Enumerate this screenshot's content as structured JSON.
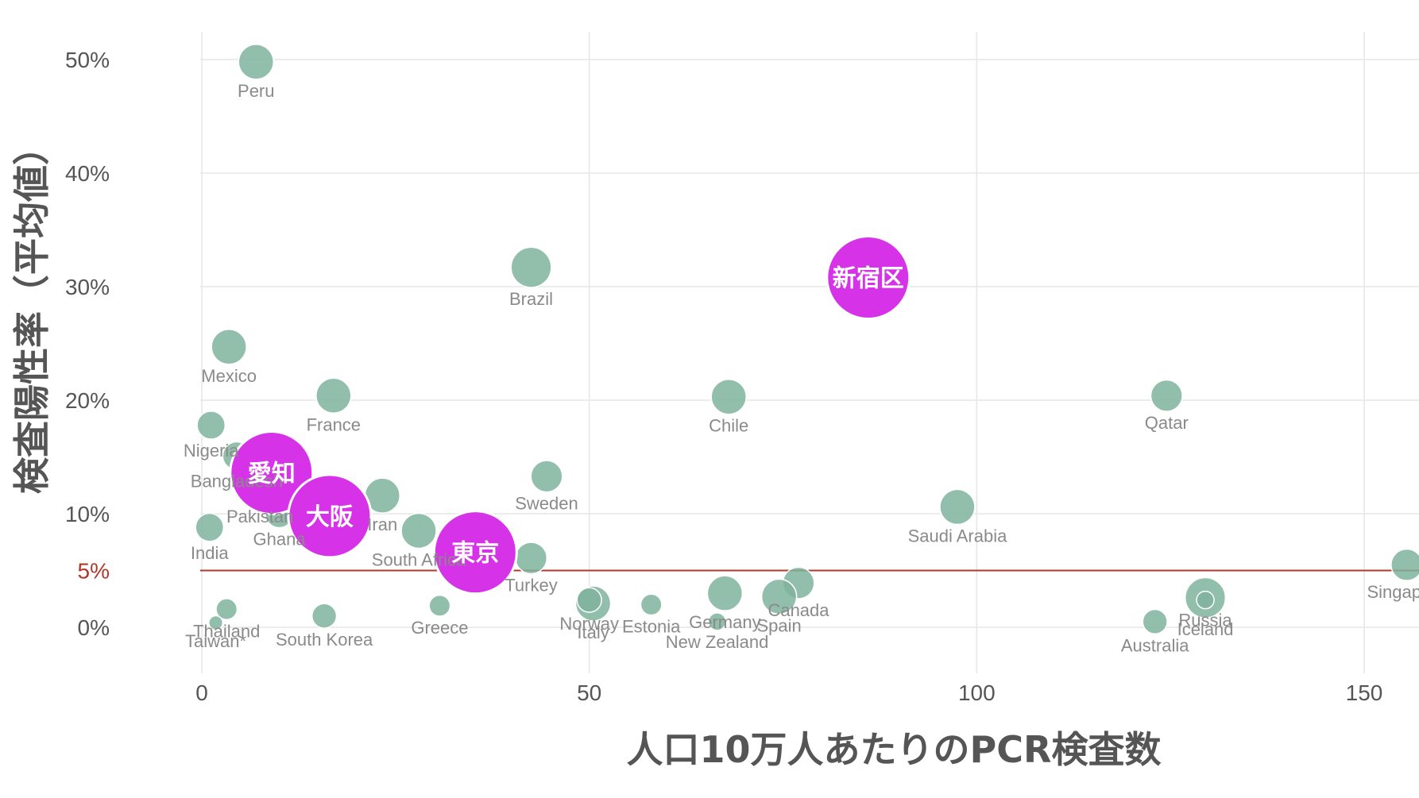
{
  "chart_data": {
    "type": "scatter",
    "xlabel": "人口10万人あたりのPCR検査数",
    "ylabel": "検査陽性率（平均値）",
    "xlim": [
      -5,
      158
    ],
    "ylim": [
      -3.5,
      54
    ],
    "x_ticks": [
      {
        "value": 0,
        "label": "0"
      },
      {
        "value": 50,
        "label": "50"
      },
      {
        "value": 100,
        "label": "100"
      },
      {
        "value": 150,
        "label": "150"
      }
    ],
    "y_ticks": [
      {
        "value": 0,
        "label": "0%"
      },
      {
        "value": 10,
        "label": "10%"
      },
      {
        "value": 20,
        "label": "20%"
      },
      {
        "value": 30,
        "label": "30%"
      },
      {
        "value": 40,
        "label": "40%"
      },
      {
        "value": 50,
        "label": "50%"
      }
    ],
    "grid": true,
    "reference_line": {
      "value": 5,
      "label": "5%",
      "color": "#b0392e"
    },
    "colors": {
      "point": "#7fb39d",
      "highlight": "#d633e8",
      "grid": "#e6e6e6"
    },
    "series": [
      {
        "points": [
          {
            "label": "Peru",
            "x": 7,
            "y": 49.8,
            "size": 1
          },
          {
            "label": "Brazil",
            "x": 42.5,
            "y": 31.7,
            "size": 1.15
          },
          {
            "label": "Mexico",
            "x": 3.5,
            "y": 24.7,
            "size": 1
          },
          {
            "label": "France",
            "x": 17,
            "y": 20.4,
            "size": 1
          },
          {
            "label": "Chile",
            "x": 68,
            "y": 20.3,
            "size": 1
          },
          {
            "label": "Qatar",
            "x": 124.5,
            "y": 20.4,
            "size": 0.9
          },
          {
            "label": "Nigeria",
            "x": 1.2,
            "y": 17.8,
            "size": 0.8
          },
          {
            "label": "Bangladesh",
            "x": 4.5,
            "y": 15.1,
            "size": 0.8
          },
          {
            "label": "Pakistan",
            "x": 7.5,
            "y": 12.0,
            "size": 0.8
          },
          {
            "label": "Sweden",
            "x": 44.5,
            "y": 13.3,
            "size": 0.9
          },
          {
            "label": "Iran",
            "x": 23.3,
            "y": 11.6,
            "size": 1
          },
          {
            "label": "Ghana",
            "x": 10,
            "y": 10.0,
            "size": 0.8
          },
          {
            "label": "India",
            "x": 1,
            "y": 8.8,
            "size": 0.8
          },
          {
            "label": "South Africa",
            "x": 28,
            "y": 8.5,
            "size": 1
          },
          {
            "label": "Saudi Arabia",
            "x": 97.5,
            "y": 10.6,
            "size": 1
          },
          {
            "label": "Turkey",
            "x": 42.5,
            "y": 6.1,
            "size": 0.9
          },
          {
            "label": "Singapore",
            "x": 155.5,
            "y": 5.5,
            "size": 0.9
          },
          {
            "label": "Canada",
            "x": 77,
            "y": 3.9,
            "size": 0.9
          },
          {
            "label": "Germany",
            "x": 67.5,
            "y": 3.0,
            "size": 1
          },
          {
            "label": "Spain",
            "x": 74.5,
            "y": 2.7,
            "size": 1
          },
          {
            "label": "Iceland",
            "x": 129.5,
            "y": 2.6,
            "size": 1.15
          },
          {
            "label": "Russia",
            "x": 129.5,
            "y": 2.4,
            "size": 0.5
          },
          {
            "label": "Italy",
            "x": 50.5,
            "y": 2.1,
            "size": 1
          },
          {
            "label": "Norway",
            "x": 50,
            "y": 2.4,
            "size": 0.7
          },
          {
            "label": "Estonia",
            "x": 58,
            "y": 2.0,
            "size": 0.6
          },
          {
            "label": "Greece",
            "x": 30.7,
            "y": 1.9,
            "size": 0.6
          },
          {
            "label": "Thailand",
            "x": 3.2,
            "y": 1.6,
            "size": 0.6
          },
          {
            "label": "South Korea",
            "x": 15.8,
            "y": 1.0,
            "size": 0.7
          },
          {
            "label": "New Zealand",
            "x": 66.5,
            "y": 0.5,
            "size": 0.5
          },
          {
            "label": "Australia",
            "x": 123,
            "y": 0.5,
            "size": 0.7
          },
          {
            "label": "Taiwan*",
            "x": 1.8,
            "y": 0.4,
            "size": 0.4
          }
        ]
      },
      {
        "highlight": true,
        "points": [
          {
            "label": "新宿区",
            "x": 86,
            "y": 30.8
          },
          {
            "label": "愛知",
            "x": 9,
            "y": 13.6
          },
          {
            "label": "大阪",
            "x": 16.5,
            "y": 9.8
          },
          {
            "label": "東京",
            "x": 35.3,
            "y": 6.6
          }
        ]
      }
    ]
  }
}
